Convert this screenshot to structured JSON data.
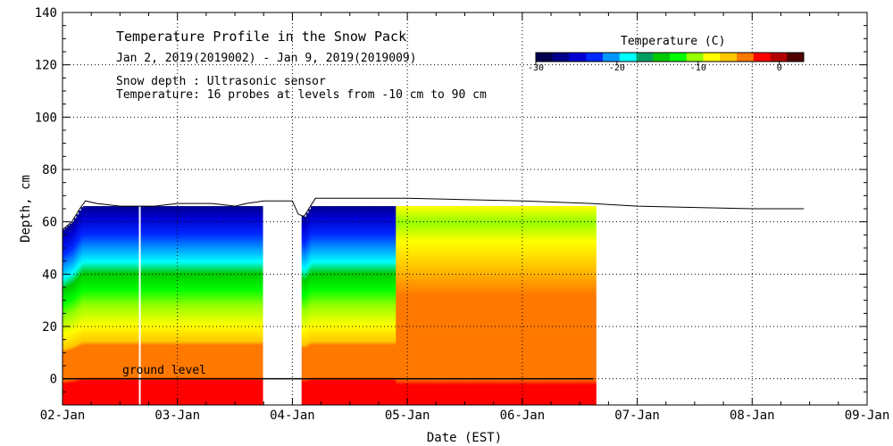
{
  "chart_data": {
    "type": "heatmap",
    "title": "Temperature Profile in the Snow Pack",
    "subtitle": "Jan  2, 2019(2019002) - Jan  9, 2019(2019009)",
    "notes": [
      "Snow depth : Ultrasonic sensor",
      "Temperature: 16 probes at levels from -10 cm to 90 cm"
    ],
    "xlabel": "Date (EST)",
    "ylabel": "Depth, cm",
    "x_ticks": [
      "02-Jan",
      "03-Jan",
      "04-Jan",
      "05-Jan",
      "06-Jan",
      "07-Jan",
      "08-Jan",
      "09-Jan"
    ],
    "xlim_days": [
      0,
      7
    ],
    "ylim": [
      -10,
      140
    ],
    "y_ticks": [
      "0",
      "20",
      "40",
      "60",
      "80",
      "100",
      "120",
      "140"
    ],
    "grid": true,
    "ground_level_label": "ground level",
    "colorbar": {
      "title": "Temperature (C)",
      "range": [
        -30,
        3
      ],
      "tick_labels": [
        "-30",
        "-20",
        "-10",
        "0"
      ],
      "colors": [
        "#000050",
        "#00008c",
        "#0000d2",
        "#0028ff",
        "#0096ff",
        "#00ffff",
        "#00a064",
        "#00c800",
        "#00ff00",
        "#96ff00",
        "#ffff00",
        "#ffc800",
        "#ff7800",
        "#ff0000",
        "#b40000",
        "#500000"
      ]
    },
    "snow_depth_series": {
      "name": "Snow depth",
      "units": "cm",
      "points": [
        [
          0.0,
          57
        ],
        [
          0.08,
          60
        ],
        [
          0.15,
          65
        ],
        [
          0.2,
          68
        ],
        [
          0.3,
          67
        ],
        [
          0.5,
          66
        ],
        [
          0.8,
          66
        ],
        [
          1.0,
          67
        ],
        [
          1.3,
          67
        ],
        [
          1.5,
          66
        ],
        [
          1.6,
          67
        ],
        [
          1.75,
          68
        ],
        [
          2.0,
          68
        ],
        [
          2.05,
          63
        ],
        [
          2.1,
          62
        ],
        [
          2.2,
          69
        ],
        [
          3.0,
          69
        ],
        [
          4.0,
          68
        ],
        [
          4.6,
          67
        ],
        [
          5.0,
          66
        ],
        [
          6.0,
          65
        ],
        [
          6.45,
          65
        ]
      ]
    },
    "data_gaps_days": [
      [
        0.65,
        0.68
      ],
      [
        1.73,
        2.07
      ]
    ],
    "data_end_day": 4.62
  }
}
